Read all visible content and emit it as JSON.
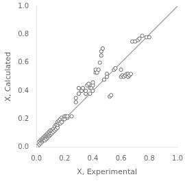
{
  "chart_data": {
    "type": "scatter",
    "xlabel": "X, Experimental",
    "ylabel": "X, Calculated",
    "series": [
      {
        "type": "line",
        "color": "#999999",
        "x": [
          0.0,
          1.0
        ],
        "values": [
          0.0,
          1.0
        ]
      },
      {
        "type": "scatter",
        "color": "#666666",
        "marker": "o",
        "x": [
          0.01,
          0.02,
          0.02,
          0.03,
          0.03,
          0.04,
          0.04,
          0.04,
          0.05,
          0.05,
          0.05,
          0.06,
          0.06,
          0.06,
          0.07,
          0.07,
          0.07,
          0.08,
          0.08,
          0.08,
          0.08,
          0.09,
          0.09,
          0.09,
          0.1,
          0.1,
          0.1,
          0.11,
          0.11,
          0.12,
          0.12,
          0.13,
          0.13,
          0.14,
          0.14,
          0.15,
          0.15,
          0.15,
          0.16,
          0.16,
          0.17,
          0.17,
          0.18,
          0.18,
          0.19,
          0.2,
          0.2,
          0.21,
          0.22,
          0.22,
          0.25,
          0.28,
          0.28,
          0.3,
          0.3,
          0.32,
          0.33,
          0.35,
          0.35,
          0.36,
          0.37,
          0.38,
          0.38,
          0.39,
          0.4,
          0.4,
          0.4,
          0.42,
          0.42,
          0.43,
          0.44,
          0.45,
          0.46,
          0.46,
          0.47,
          0.48,
          0.5,
          0.5,
          0.52,
          0.53,
          0.55,
          0.56,
          0.6,
          0.6,
          0.61,
          0.62,
          0.63,
          0.64,
          0.65,
          0.65,
          0.66,
          0.67,
          0.68,
          0.7,
          0.72,
          0.73,
          0.75,
          0.78,
          0.8
        ],
        "values": [
          0.01,
          0.02,
          0.04,
          0.03,
          0.05,
          0.04,
          0.05,
          0.06,
          0.05,
          0.06,
          0.07,
          0.05,
          0.07,
          0.08,
          0.06,
          0.08,
          0.09,
          0.07,
          0.08,
          0.09,
          0.1,
          0.08,
          0.09,
          0.11,
          0.09,
          0.1,
          0.12,
          0.1,
          0.12,
          0.11,
          0.13,
          0.12,
          0.15,
          0.13,
          0.16,
          0.14,
          0.16,
          0.18,
          0.17,
          0.19,
          0.17,
          0.2,
          0.18,
          0.21,
          0.2,
          0.2,
          0.22,
          0.22,
          0.21,
          0.22,
          0.22,
          0.32,
          0.35,
          0.38,
          0.42,
          0.4,
          0.42,
          0.38,
          0.4,
          0.44,
          0.45,
          0.38,
          0.42,
          0.42,
          0.4,
          0.44,
          0.46,
          0.53,
          0.55,
          0.53,
          0.55,
          0.6,
          0.65,
          0.68,
          0.7,
          0.48,
          0.52,
          0.5,
          0.36,
          0.37,
          0.55,
          0.56,
          0.55,
          0.5,
          0.51,
          0.5,
          0.51,
          0.52,
          0.5,
          0.52,
          0.51,
          0.52,
          0.75,
          0.75,
          0.76,
          0.77,
          0.79,
          0.78,
          0.78
        ]
      }
    ],
    "xlim": [
      0.0,
      1.0
    ],
    "ylim": [
      0.0,
      1.0
    ],
    "xticks": [
      {
        "value": 0.0,
        "label": "0.0"
      },
      0.2,
      0.4,
      0.6,
      0.8,
      {
        "value": 1.0,
        "label": "1.0"
      }
    ],
    "yticks": [
      {
        "value": 0.0,
        "label": "0.0"
      },
      0.2,
      0.4,
      0.6,
      0.8,
      {
        "value": 1.0,
        "label": "1.0"
      }
    ],
    "grid": false
  }
}
